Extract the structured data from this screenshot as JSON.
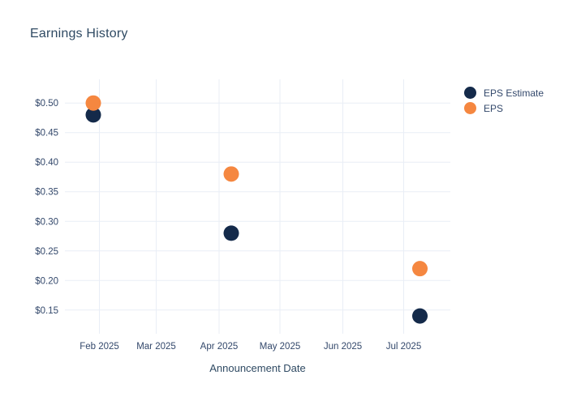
{
  "header": {
    "title": "Earnings History"
  },
  "chart_data": {
    "type": "scatter",
    "title": "Earnings History",
    "xlabel": "Announcement Date",
    "ylabel": "",
    "grid": true,
    "legend_position": "top-right",
    "xlim": [
      "2025-01-15",
      "2025-07-24"
    ],
    "ylim": [
      0.11,
      0.54
    ],
    "x_ticks": [
      {
        "label": "Feb 2025",
        "date": "2025-02-01"
      },
      {
        "label": "Mar 2025",
        "date": "2025-03-01"
      },
      {
        "label": "Apr 2025",
        "date": "2025-04-01"
      },
      {
        "label": "May 2025",
        "date": "2025-05-01"
      },
      {
        "label": "Jun 2025",
        "date": "2025-06-01"
      },
      {
        "label": "Jul 2025",
        "date": "2025-07-01"
      }
    ],
    "y_ticks": [
      {
        "label": "$0.50",
        "value": 0.5
      },
      {
        "label": "$0.45",
        "value": 0.45
      },
      {
        "label": "$0.40",
        "value": 0.4
      },
      {
        "label": "$0.35",
        "value": 0.35
      },
      {
        "label": "$0.30",
        "value": 0.3
      },
      {
        "label": "$0.25",
        "value": 0.25
      },
      {
        "label": "$0.20",
        "value": 0.2
      },
      {
        "label": "$0.15",
        "value": 0.15
      }
    ],
    "series": [
      {
        "name": "EPS Estimate",
        "color": "#142a4a",
        "marker_size": 19,
        "points": [
          {
            "x": "2025-01-29",
            "y": 0.48
          },
          {
            "x": "2025-04-07",
            "y": 0.28
          },
          {
            "x": "2025-07-09",
            "y": 0.14
          }
        ]
      },
      {
        "name": "EPS",
        "color": "#f58740",
        "marker_size": 19,
        "points": [
          {
            "x": "2025-01-29",
            "y": 0.5
          },
          {
            "x": "2025-04-07",
            "y": 0.38
          },
          {
            "x": "2025-07-09",
            "y": 0.22
          }
        ]
      }
    ],
    "colors": {
      "background": "#ffffff",
      "grid": "#e9eef6",
      "title_text": "#2f4a63",
      "tick_text": "#33486b"
    }
  }
}
